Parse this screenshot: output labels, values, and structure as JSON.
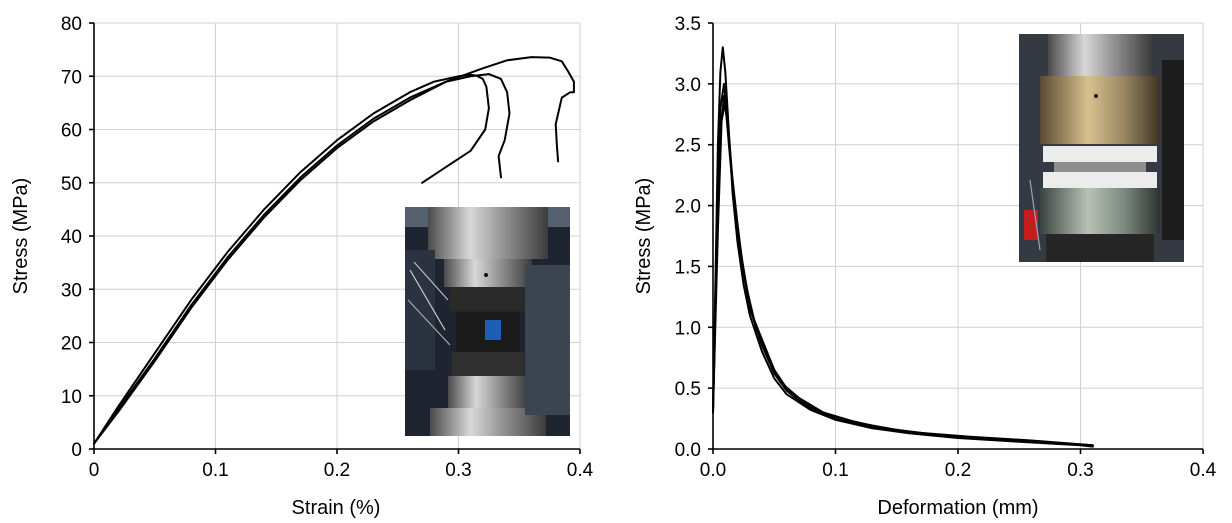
{
  "chart_data": [
    {
      "type": "line",
      "xlabel": "Strain (%)",
      "ylabel": "Stress (MPa)",
      "xlim": [
        0,
        0.4
      ],
      "ylim": [
        0,
        80
      ],
      "xticks": [
        "0",
        "0.1",
        "0.2",
        "0.3",
        "0.4"
      ],
      "yticks": [
        "0",
        "10",
        "20",
        "30",
        "40",
        "50",
        "60",
        "70",
        "80"
      ],
      "grid": true,
      "inset_photo": "uniaxial-compression-test-setup-photo",
      "series": [
        {
          "x": [
            0,
            0.02,
            0.05,
            0.08,
            0.11,
            0.14,
            0.17,
            0.2,
            0.23,
            0.26,
            0.28,
            0.3,
            0.31,
            0.315,
            0.32,
            0.323,
            0.325,
            0.322,
            0.31,
            0.29,
            0.27
          ],
          "y": [
            1,
            8,
            18,
            28,
            37,
            45,
            52,
            58,
            63,
            67,
            69,
            70,
            70.3,
            70.1,
            69.5,
            68,
            64,
            60,
            56,
            53,
            50
          ]
        },
        {
          "x": [
            0,
            0.02,
            0.05,
            0.08,
            0.11,
            0.14,
            0.17,
            0.2,
            0.23,
            0.26,
            0.29,
            0.31,
            0.325,
            0.335,
            0.34,
            0.342,
            0.338,
            0.333,
            0.335
          ],
          "y": [
            1,
            7.5,
            17,
            27,
            36,
            44,
            51,
            57,
            62,
            66,
            69,
            70,
            70.4,
            69.5,
            67,
            63,
            58,
            55,
            51
          ]
        },
        {
          "x": [
            0,
            0.02,
            0.05,
            0.08,
            0.11,
            0.14,
            0.17,
            0.2,
            0.23,
            0.26,
            0.29,
            0.32,
            0.34,
            0.36,
            0.375,
            0.385,
            0.39,
            0.395,
            0.395,
            0.392,
            0.385,
            0.38,
            0.381,
            0.382
          ],
          "y": [
            1,
            7,
            16.5,
            26.5,
            35.5,
            43.5,
            50.5,
            56.5,
            61.5,
            65.5,
            69,
            71.5,
            73,
            73.6,
            73.5,
            72.8,
            71,
            69,
            67,
            67,
            66,
            61,
            57,
            54
          ]
        }
      ]
    },
    {
      "type": "line",
      "xlabel": "Deformation (mm)",
      "ylabel": "Stress (MPa)",
      "xlim": [
        0,
        0.4
      ],
      "ylim": [
        0,
        3.5
      ],
      "xticks": [
        "0.0",
        "0.1",
        "0.2",
        "0.3",
        "0.4"
      ],
      "yticks": [
        "0.0",
        "0.5",
        "1.0",
        "1.5",
        "2.0",
        "2.5",
        "3.0",
        "3.5"
      ],
      "grid": true,
      "inset_photo": "tensile-test-setup-photo",
      "series": [
        {
          "x": [
            0,
            0.002,
            0.004,
            0.006,
            0.008,
            0.01,
            0.013,
            0.016,
            0.02,
            0.025,
            0.03,
            0.04,
            0.05,
            0.06,
            0.08,
            0.1,
            0.13,
            0.16,
            0.2,
            0.25,
            0.3,
            0.31
          ],
          "y": [
            0.35,
            1.4,
            2.5,
            3.1,
            3.3,
            3.1,
            2.6,
            2.1,
            1.7,
            1.35,
            1.1,
            0.8,
            0.58,
            0.45,
            0.32,
            0.24,
            0.17,
            0.13,
            0.09,
            0.06,
            0.03,
            0.02
          ]
        },
        {
          "x": [
            0,
            0.003,
            0.006,
            0.009,
            0.012,
            0.016,
            0.02,
            0.026,
            0.032,
            0.04,
            0.05,
            0.06,
            0.075,
            0.1,
            0.13,
            0.17,
            0.22,
            0.27,
            0.3,
            0.31
          ],
          "y": [
            0.3,
            1.6,
            2.8,
            3.0,
            2.7,
            2.2,
            1.8,
            1.4,
            1.1,
            0.85,
            0.62,
            0.48,
            0.36,
            0.25,
            0.18,
            0.13,
            0.09,
            0.06,
            0.035,
            0.025
          ]
        },
        {
          "x": [
            0,
            0.003,
            0.006,
            0.009,
            0.012,
            0.015,
            0.02,
            0.025,
            0.03,
            0.04,
            0.05,
            0.06,
            0.08,
            0.1,
            0.14,
            0.18,
            0.23,
            0.28,
            0.31
          ],
          "y": [
            0.3,
            1.7,
            2.6,
            2.9,
            2.65,
            2.3,
            1.85,
            1.45,
            1.15,
            0.9,
            0.65,
            0.5,
            0.34,
            0.26,
            0.17,
            0.12,
            0.08,
            0.05,
            0.03
          ]
        },
        {
          "x": [
            0,
            0.004,
            0.007,
            0.01,
            0.013,
            0.017,
            0.022,
            0.028,
            0.035,
            0.045,
            0.055,
            0.07,
            0.09,
            0.12,
            0.16,
            0.21,
            0.26,
            0.31
          ],
          "y": [
            0.3,
            1.8,
            2.7,
            2.85,
            2.5,
            2.05,
            1.65,
            1.3,
            1.0,
            0.75,
            0.55,
            0.42,
            0.3,
            0.21,
            0.14,
            0.1,
            0.07,
            0.03
          ]
        }
      ]
    }
  ]
}
